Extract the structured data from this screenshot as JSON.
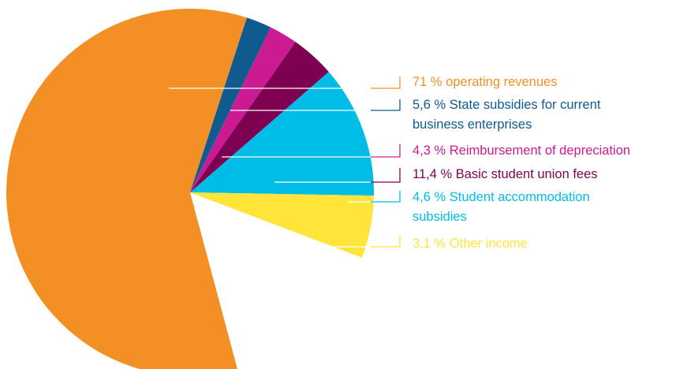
{
  "chart_data": {
    "type": "pie",
    "slices": [
      {
        "label": "operating revenues",
        "value_text": "71 %",
        "value": 71,
        "color": "#F39025"
      },
      {
        "label": "State subsidies for current business enterprises",
        "value_text": "5,6 %",
        "value": 5.6,
        "color": "#0F5A8F"
      },
      {
        "label": "Reimbursement of depreciation",
        "value_text": "4,3 %",
        "value": 4.3,
        "color": "#CC1A93"
      },
      {
        "label": "Basic student union fees",
        "value_text": "11,4 %",
        "value": 11.4,
        "color": "#7D0150"
      },
      {
        "label": "Student accommodation subsidies",
        "value_text": "4,6 %",
        "value": 4.6,
        "color": "#00BDE8"
      },
      {
        "label": "Other income",
        "value_text": "3,1 %",
        "value": 3.1,
        "color": "#FFE43A"
      }
    ],
    "legend": [
      {
        "lines": [
          "71 % operating revenues"
        ],
        "color": "#F39025"
      },
      {
        "lines": [
          "5,6 % State subsidies for current",
          "business enterprises"
        ],
        "color": "#0F5A8F"
      },
      {
        "lines": [
          "4,3 % Reimbursement of depreciation"
        ],
        "color": "#CC1A93"
      },
      {
        "lines": [
          "11,4 % Basic student union fees"
        ],
        "color": "#7D0150"
      },
      {
        "lines": [
          "4,6 % Student accommodation",
          "subsidies"
        ],
        "color": "#00BDE8"
      },
      {
        "lines": [
          "3,1 % Other income"
        ],
        "color": "#FFE43A"
      }
    ],
    "legend_placement": "right",
    "title": ""
  }
}
